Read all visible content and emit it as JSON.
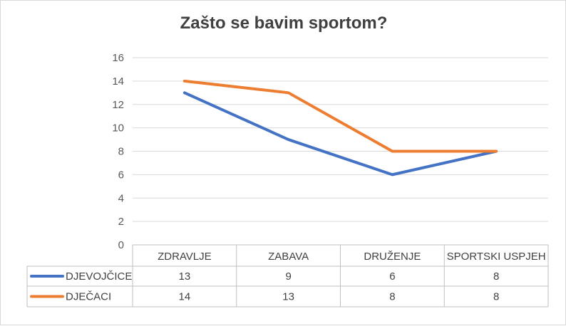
{
  "chart_data": {
    "type": "line",
    "title": "Zašto se bavim sportom?",
    "categories": [
      "ZDRAVLJE",
      "ZABAVA",
      "DRUŽENJE",
      "SPORTSKI USPJEH"
    ],
    "series": [
      {
        "name": "DJEVOJČICE",
        "values": [
          13,
          9,
          6,
          8
        ],
        "color": "#4472c4"
      },
      {
        "name": "DJEČACI",
        "values": [
          14,
          13,
          8,
          8
        ],
        "color": "#ed7d31"
      }
    ],
    "ylim": [
      0,
      16
    ],
    "yticks": [
      "0",
      "2",
      "4",
      "6",
      "8",
      "10",
      "12",
      "14",
      "16"
    ],
    "grid": true,
    "legend": "data table"
  }
}
